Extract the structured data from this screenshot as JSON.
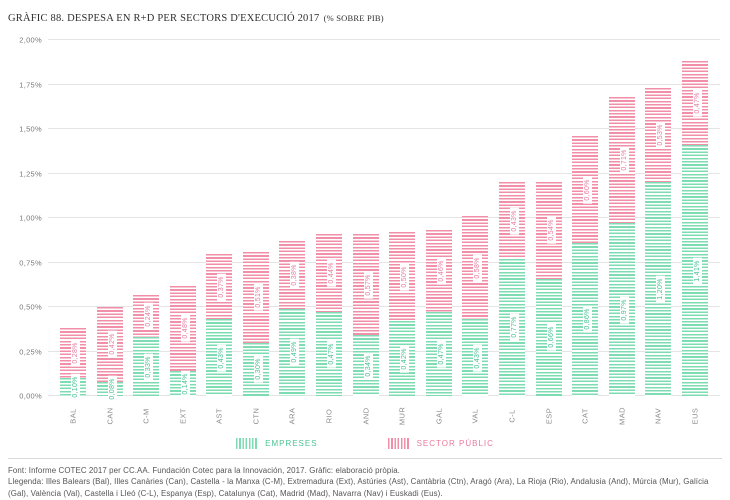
{
  "title": {
    "main": "GRÀFIC 88. DESPESA EN R+D PER SECTORS D'EXECUCIÓ 2017",
    "suffix": "(% SOBRE PIB)"
  },
  "legend": {
    "items": [
      {
        "label": "EMPRESES",
        "color": "#7edcb3",
        "text_color": "#4cc493"
      },
      {
        "label": "SECTOR PÚBLIC",
        "color": "#f18fa9",
        "text_color": "#e87b9d"
      }
    ]
  },
  "chart_data": {
    "type": "bar",
    "stacked": true,
    "title": "GRÀFIC 88. DESPESA EN R+D PER SECTORS D'EXECUCIÓ 2017 (% SOBRE PIB)",
    "categories": [
      "BAL",
      "CAN",
      "C-M",
      "EXT",
      "AST",
      "CTN",
      "ARA",
      "RIO",
      "AND",
      "MUR",
      "GAL",
      "VAL",
      "C-L",
      "ESP",
      "CAT",
      "MAD",
      "NAV",
      "EUS"
    ],
    "series": [
      {
        "name": "EMPRESES",
        "bar_color": "#7edcb3",
        "label_color": "#45c292",
        "values": [
          0.1,
          0.08,
          0.33,
          0.14,
          0.43,
          0.3,
          0.49,
          0.47,
          0.34,
          0.42,
          0.47,
          0.43,
          0.77,
          0.66,
          0.86,
          0.97,
          1.2,
          1.41
        ],
        "labels": [
          "0,10%",
          "0,08%",
          "0,33%",
          "0,14%",
          "0,43%",
          "0,30%",
          "0,49%",
          "0,47%",
          "0,34%",
          "0,42%",
          "0,47%",
          "0,43%",
          "0,77%",
          "0,66%",
          "0,86%",
          "0,97%",
          "1,20%",
          "1,41%"
        ]
      },
      {
        "name": "SECTOR PÚBLIC",
        "bar_color": "#f18fa9",
        "label_color": "#e87b9d",
        "values": [
          0.28,
          0.42,
          0.24,
          0.48,
          0.37,
          0.51,
          0.38,
          0.44,
          0.57,
          0.5,
          0.46,
          0.58,
          0.43,
          0.54,
          0.6,
          0.71,
          0.53,
          0.47
        ],
        "labels": [
          "0,28%",
          "0,42%",
          "0,24%",
          "0,48%",
          "0,37%",
          "0,51%",
          "0,38%",
          "0,44%",
          "0,57%",
          "0,50%",
          "0,46%",
          "0,58%",
          "0,43%",
          "0,54%",
          "0,60%",
          "0,71%",
          "0,53%",
          "0,47%"
        ]
      }
    ],
    "y_axis": {
      "min": 0,
      "max": 2,
      "step": 0.25,
      "ticks": [
        "0,00%",
        "0,25%",
        "0,50%",
        "0,75%",
        "1,00%",
        "1,25%",
        "1,50%",
        "1,75%",
        "2,00%"
      ]
    },
    "grid": true,
    "legend_position": "bottom",
    "value_label_format": "comma-decimal-percent"
  },
  "footer": {
    "font_line": "Font: Informe COTEC 2017 per CC.AA. Fundación Cotec para la Innovación, 2017. Gràfic: elaboració pròpia.",
    "legend_line": "Llegenda: Illes Balears (Bal), Illes Canàries (Can), Castella - la Manxa (C-M), Extremadura (Ext), Astúries (Ast), Cantàbria (Ctn), Aragó (Ara), La Rioja (Rio), Andalusia (And), Múrcia (Mur), Galícia (Gal), València (Val), Castella i Lleó (C-L), Espanya (Esp), Catalunya (Cat), Madrid (Mad), Navarra (Nav) i Euskadi (Eus)."
  }
}
